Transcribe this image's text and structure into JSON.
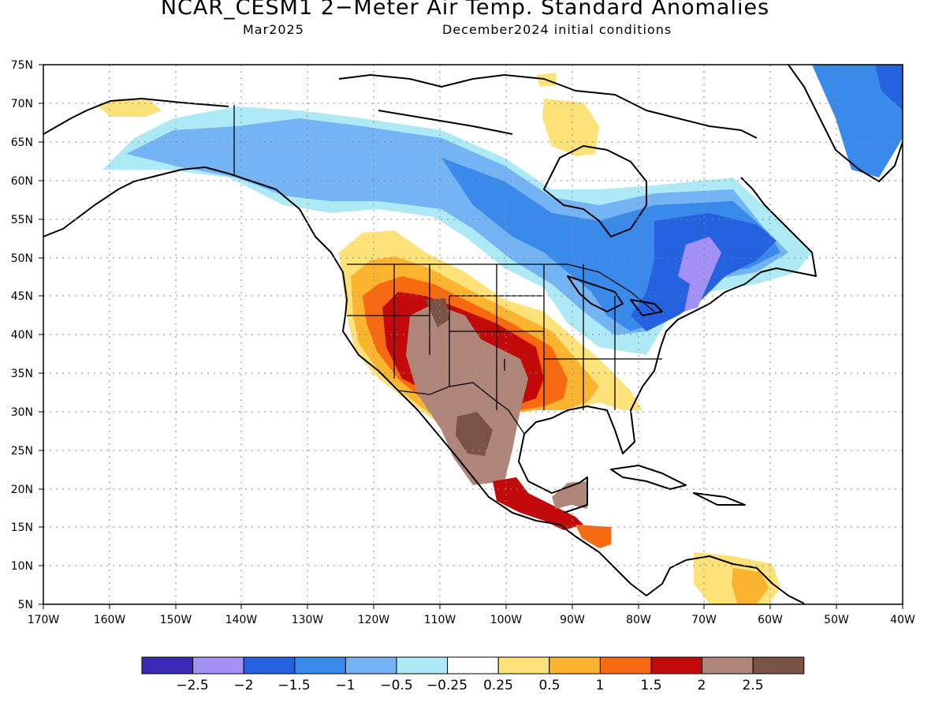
{
  "title": "NCAR_CESM1 2−Meter Air Temp. Standard Anomalies",
  "subtitle_month": "Mar2025",
  "subtitle_conditions": "December2024 initial conditions",
  "latitude_labels": [
    "75N",
    "70N",
    "65N",
    "60N",
    "55N",
    "50N",
    "45N",
    "40N",
    "35N",
    "30N",
    "25N",
    "20N",
    "15N",
    "10N",
    "5N"
  ],
  "longitude_labels": [
    "170W",
    "160W",
    "150W",
    "140W",
    "130W",
    "120W",
    "110W",
    "100W",
    "90W",
    "80W",
    "70W",
    "60W",
    "50W",
    "40W"
  ],
  "colorbar": {
    "colors": [
      "#3b2ab8",
      "#a391f5",
      "#2462e0",
      "#3a8aeb",
      "#74b4f4",
      "#aeeaf6",
      "#ffffff",
      "#fde27a",
      "#fbb42f",
      "#f76a12",
      "#c20a0a",
      "#b0857a",
      "#7b5246"
    ],
    "labels": [
      "−2.5",
      "−2",
      "−1.5",
      "−1",
      "−0.5",
      "−0.25",
      "0.25",
      "0.5",
      "1",
      "1.5",
      "2",
      "2.5"
    ]
  }
}
